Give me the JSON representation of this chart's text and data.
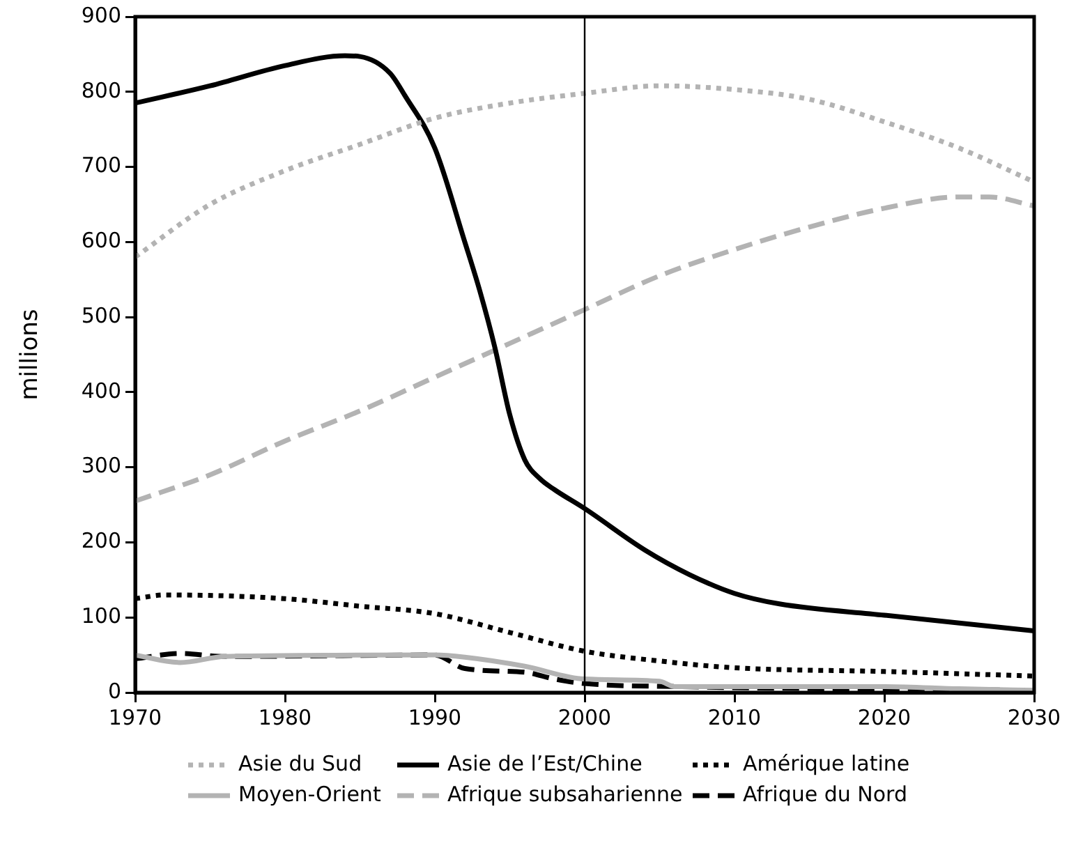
{
  "chart_data": {
    "type": "line",
    "ylabel": "millions",
    "xlim": [
      1970,
      2030
    ],
    "xticks": [
      1970,
      1980,
      1990,
      2000,
      2010,
      2020,
      2030
    ],
    "ylim": [
      0,
      900
    ],
    "yticks": [
      0,
      100,
      200,
      300,
      400,
      500,
      600,
      700,
      800,
      900
    ],
    "grid": false,
    "legend": "bottom",
    "marker": "none",
    "ref_lines": [
      {
        "axis": "x",
        "value": 2000,
        "color": "#000000",
        "line_style": "solid"
      }
    ],
    "series": [
      {
        "name": "Asie du Sud",
        "color": "#b3b3b3",
        "line_style": "dotted",
        "x": [
          1970,
          1975,
          1980,
          1985,
          1990,
          1995,
          2000,
          2005,
          2010,
          2015,
          2020,
          2025,
          2030
        ],
        "values": [
          580,
          650,
          695,
          730,
          765,
          785,
          798,
          808,
          803,
          790,
          760,
          725,
          680
        ]
      },
      {
        "name": "Asie de l’Est/Chine",
        "color": "#000000",
        "line_style": "solid",
        "x": [
          1970,
          1975,
          1980,
          1984,
          1985,
          1987,
          1988,
          1990,
          1992,
          1993,
          1994,
          1995,
          1996,
          1997,
          1998,
          2000,
          2004,
          2007,
          2010,
          2013,
          2020,
          2030
        ],
        "values": [
          785,
          808,
          835,
          848,
          847,
          825,
          795,
          725,
          600,
          535,
          460,
          370,
          310,
          285,
          270,
          245,
          190,
          157,
          132,
          118,
          103,
          82
        ]
      },
      {
        "name": "Amérique latine",
        "color": "#000000",
        "line_style": "dotted",
        "x": [
          1970,
          1972,
          1980,
          1985,
          1990,
          1995,
          2000,
          2005,
          2010,
          2020,
          2030
        ],
        "values": [
          125,
          130,
          125,
          115,
          105,
          80,
          55,
          42,
          33,
          28,
          22
        ]
      },
      {
        "name": "Moyen-Orient",
        "color": "#b3b3b3",
        "line_style": "solid",
        "x": [
          1970,
          1973,
          1976,
          1990,
          1992,
          1996,
          2000,
          2005,
          2006,
          2020,
          2025,
          2030
        ],
        "values": [
          50,
          40,
          48,
          50,
          47,
          35,
          18,
          15,
          8,
          8,
          5,
          3
        ]
      },
      {
        "name": "Afrique subsaharienne",
        "color": "#b3b3b3",
        "line_style": "dashed",
        "x": [
          1970,
          1975,
          1980,
          1985,
          1990,
          1995,
          2000,
          2005,
          2010,
          2015,
          2020,
          2025,
          2027,
          2030
        ],
        "values": [
          255,
          290,
          335,
          375,
          420,
          465,
          510,
          555,
          590,
          620,
          645,
          660,
          660,
          648
        ]
      },
      {
        "name": "Afrique du Nord",
        "color": "#000000",
        "line_style": "dashed",
        "x": [
          1970,
          1973,
          1976,
          1990,
          1992,
          1996,
          1998,
          2000,
          2006,
          2030
        ],
        "values": [
          45,
          52,
          48,
          50,
          32,
          27,
          18,
          12,
          8,
          3
        ]
      }
    ]
  }
}
